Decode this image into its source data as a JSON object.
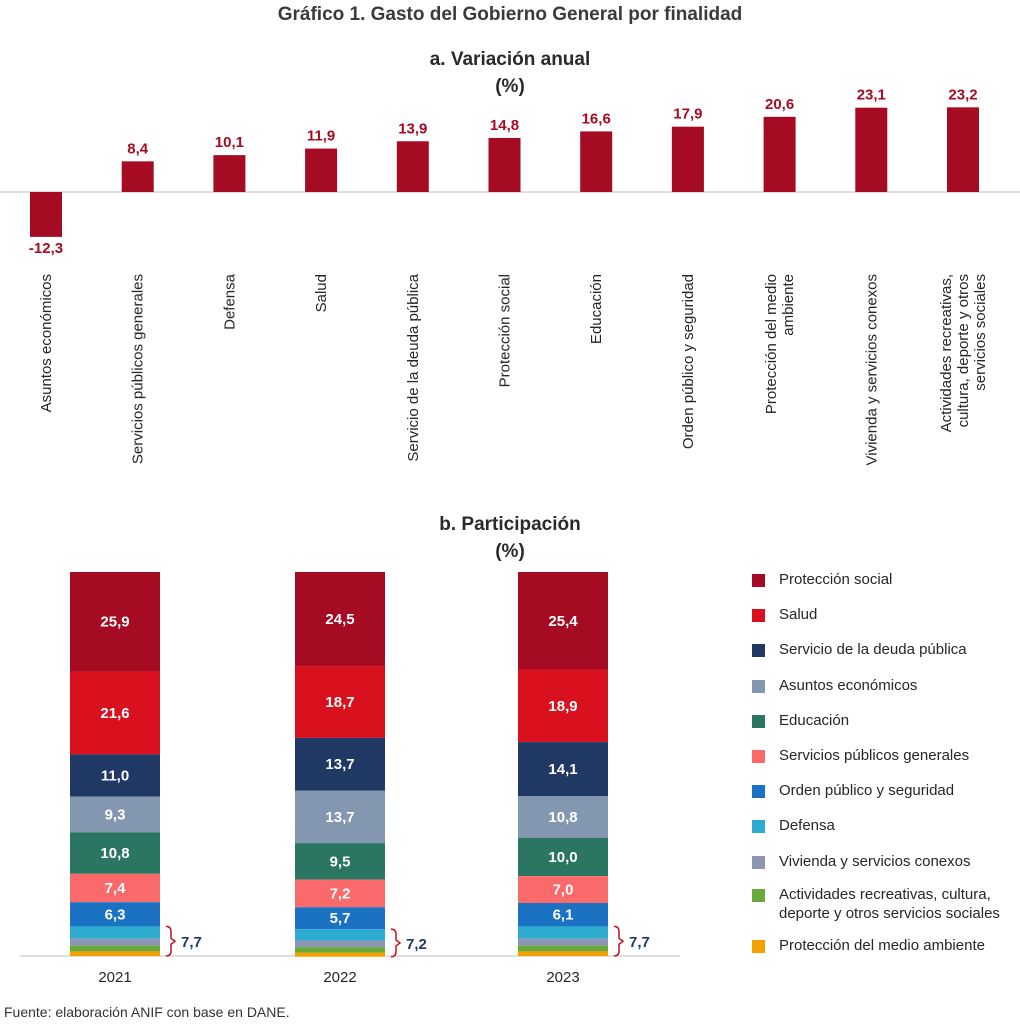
{
  "title": "Gráfico 1. Gasto del Gobierno General por finalidad",
  "panel_a": {
    "title": "a. Variación anual",
    "unit": "(%)"
  },
  "panel_b": {
    "title": "b. Participación",
    "unit": "(%)"
  },
  "source": "Fuente: elaboración ANIF con base en DANE.",
  "colors": {
    "bar_a": "#a50b22",
    "protecc_social": "#a50b22",
    "salud": "#d9111f",
    "deuda": "#1f3864",
    "asuntos": "#8497b0",
    "educacion": "#2b7663",
    "servicios_gen": "#fb6a6a",
    "orden": "#1b72c2",
    "defensa": "#2eabd1",
    "vivienda": "#8c95b2",
    "actividades": "#6aaa3c",
    "medio_amb": "#f4a000",
    "bracket": "#c0121f",
    "bracket_label": "#1f3864"
  },
  "chart_data": [
    {
      "type": "bar",
      "categories": [
        [
          "Asuntos económicos"
        ],
        [
          "Servicios públicos generales"
        ],
        [
          "Defensa"
        ],
        [
          "Salud"
        ],
        [
          "Servicio de la deuda pública"
        ],
        [
          "Protección social"
        ],
        [
          "Educación"
        ],
        [
          "Orden público y seguridad"
        ],
        [
          "Protección del medio",
          "ambiente"
        ],
        [
          "Vivienda y servicios conexos"
        ],
        [
          "Actividades recreativas,",
          "cultura, deporte y otros",
          "servicios sociales"
        ]
      ],
      "values": [
        -12.3,
        8.4,
        10.1,
        11.9,
        13.9,
        14.8,
        16.6,
        17.9,
        20.6,
        23.1,
        23.2
      ],
      "data_labels": [
        "-12,3",
        "8,4",
        "10,1",
        "11,9",
        "13,9",
        "14,8",
        "16,6",
        "17,9",
        "20,6",
        "23,1",
        "23,2"
      ]
    },
    {
      "type": "bar",
      "stacked": true,
      "categories": [
        "2021",
        "2022",
        "2023"
      ],
      "series": [
        {
          "name": "Protección social",
          "color_key": "protecc_social",
          "values": [
            25.9,
            24.5,
            25.4
          ],
          "labels": [
            "25,9",
            "24,5",
            "25,4"
          ]
        },
        {
          "name": "Salud",
          "color_key": "salud",
          "values": [
            21.6,
            18.7,
            18.9
          ],
          "labels": [
            "21,6",
            "18,7",
            "18,9"
          ]
        },
        {
          "name": "Servicio de la deuda pública",
          "color_key": "deuda",
          "values": [
            11.0,
            13.7,
            14.1
          ],
          "labels": [
            "11,0",
            "13,7",
            "14,1"
          ]
        },
        {
          "name": "Asuntos económicos",
          "color_key": "asuntos",
          "values": [
            9.3,
            13.7,
            10.8
          ],
          "labels": [
            "9,3",
            "13,7",
            "10,8"
          ]
        },
        {
          "name": "Educación",
          "color_key": "educacion",
          "values": [
            10.8,
            9.5,
            10.0
          ],
          "labels": [
            "10,8",
            "9,5",
            "10,0"
          ]
        },
        {
          "name": "Servicios públicos generales",
          "color_key": "servicios_gen",
          "values": [
            7.4,
            7.2,
            7.0
          ],
          "labels": [
            "7,4",
            "7,2",
            "7,0"
          ]
        },
        {
          "name": "Orden público y seguridad",
          "color_key": "orden",
          "values": [
            6.3,
            5.7,
            6.1
          ],
          "labels": [
            "6,3",
            "5,7",
            "6,1"
          ]
        },
        {
          "name": "Defensa",
          "color_key": "defensa",
          "values": [
            3.2,
            3.0,
            3.2
          ]
        },
        {
          "name": "Vivienda y servicios conexos",
          "color_key": "vivienda",
          "values": [
            1.8,
            1.7,
            1.8
          ]
        },
        {
          "name": "Actividades recreativas, cultura, deporte y otros servicios sociales",
          "legend_lines": [
            "Actividades recreativas, cultura,",
            "deporte y otros servicios sociales"
          ],
          "color_key": "actividades",
          "values": [
            1.5,
            1.4,
            1.5
          ]
        },
        {
          "name": "Protección del medio ambiente",
          "color_key": "medio_amb",
          "values": [
            1.2,
            1.1,
            1.2
          ]
        }
      ],
      "bracket_labels": [
        "7,7",
        "7,2",
        "7,7"
      ]
    }
  ]
}
